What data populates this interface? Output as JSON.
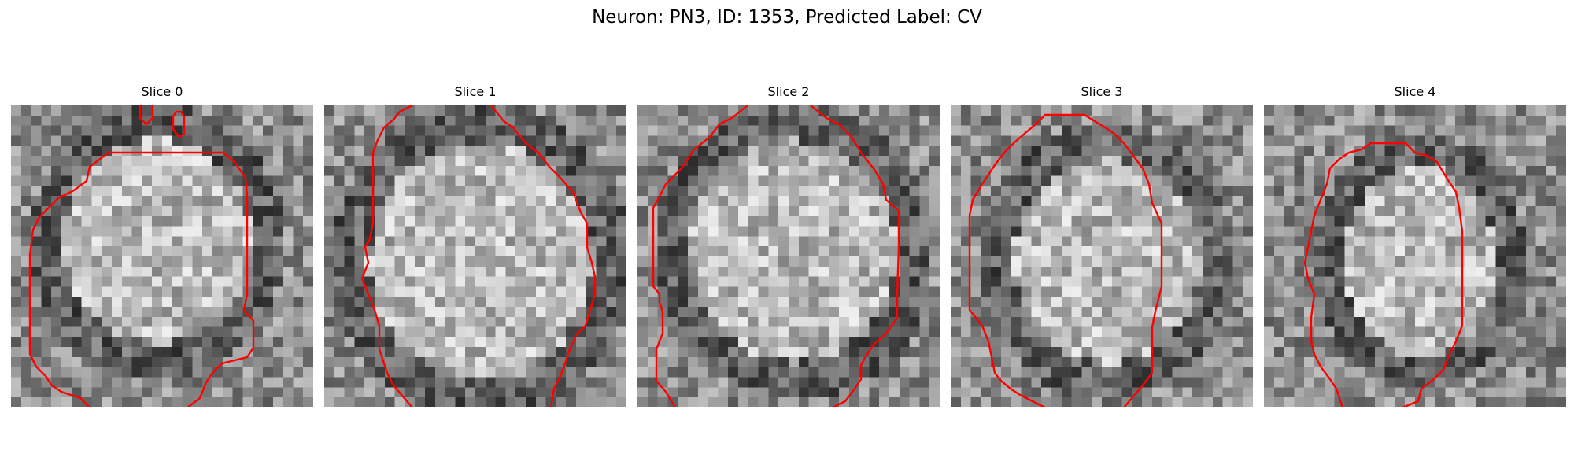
{
  "figure": {
    "title": "Neuron: PN3, ID: 1353, Predicted Label: CV"
  },
  "panels": [
    {
      "title": "Slice 0"
    },
    {
      "title": "Slice 1"
    },
    {
      "title": "Slice 2"
    },
    {
      "title": "Slice 3"
    },
    {
      "title": "Slice 4"
    }
  ],
  "colors": {
    "background": "#ffffff",
    "contour": "#ff0000",
    "colormap": "grayscale"
  }
}
